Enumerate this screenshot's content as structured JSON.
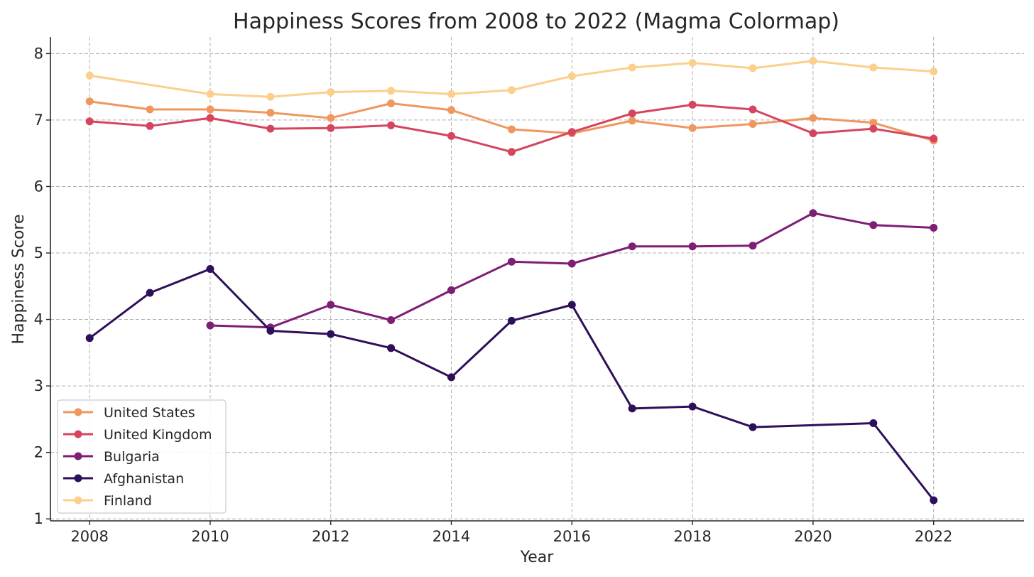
{
  "chart_data": {
    "type": "line",
    "title": "Happiness Scores from 2008 to 2022 (Magma Colormap)",
    "xlabel": "Year",
    "ylabel": "Happiness Score",
    "xlim": [
      2007.35,
      2023.5
    ],
    "ylim": [
      0.97,
      8.25
    ],
    "xticks": [
      2008,
      2010,
      2012,
      2014,
      2016,
      2018,
      2020,
      2022
    ],
    "yticks": [
      1,
      2,
      3,
      4,
      5,
      6,
      7,
      8
    ],
    "grid": true,
    "legend_position": "bottom-left",
    "x": [
      2008,
      2009,
      2010,
      2011,
      2012,
      2013,
      2014,
      2015,
      2016,
      2017,
      2018,
      2019,
      2020,
      2021,
      2022
    ],
    "series": [
      {
        "name": "United States",
        "color": "#f0975f",
        "values": [
          7.28,
          7.16,
          7.16,
          7.11,
          7.03,
          7.25,
          7.15,
          6.86,
          6.8,
          6.99,
          6.88,
          6.94,
          7.03,
          6.96,
          6.69
        ]
      },
      {
        "name": "United Kingdom",
        "color": "#d6455f",
        "values": [
          6.98,
          6.91,
          7.03,
          6.87,
          6.88,
          6.92,
          6.76,
          6.52,
          6.82,
          7.1,
          7.23,
          7.16,
          6.8,
          6.87,
          6.72
        ]
      },
      {
        "name": "Bulgaria",
        "color": "#7e1e74",
        "values": [
          null,
          null,
          3.91,
          3.88,
          4.22,
          3.99,
          4.44,
          4.87,
          4.84,
          5.1,
          5.1,
          5.11,
          5.6,
          5.42,
          5.38
        ]
      },
      {
        "name": "Afghanistan",
        "color": "#2e0f5a",
        "values": [
          3.72,
          4.4,
          4.76,
          3.83,
          3.78,
          3.57,
          3.13,
          3.98,
          4.22,
          2.66,
          2.69,
          2.38,
          null,
          2.44,
          1.28
        ]
      },
      {
        "name": "Finland",
        "color": "#fad08c",
        "values": [
          7.67,
          null,
          7.39,
          7.35,
          7.42,
          7.44,
          7.39,
          7.45,
          7.66,
          7.79,
          7.86,
          7.78,
          7.89,
          7.79,
          7.73
        ]
      }
    ]
  }
}
